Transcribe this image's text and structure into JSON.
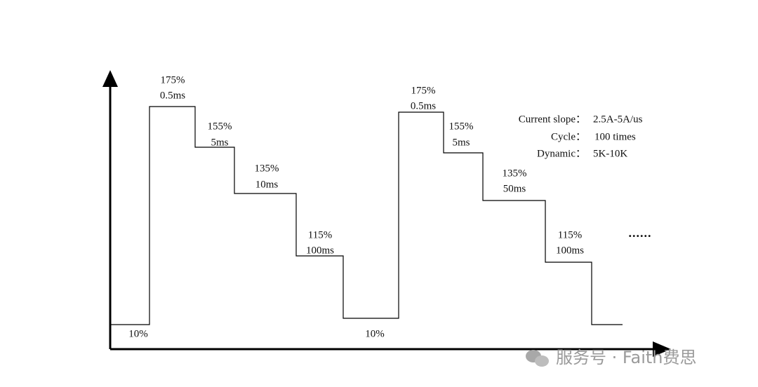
{
  "waveform": {
    "cycles": [
      {
        "steps": [
          {
            "level": "175%",
            "duration": "0.5ms"
          },
          {
            "level": "155%",
            "duration": "5ms"
          },
          {
            "level": "135%",
            "duration": "10ms"
          },
          {
            "level": "115%",
            "duration": "100ms"
          }
        ],
        "base": "10%"
      },
      {
        "steps": [
          {
            "level": "175%",
            "duration": "0.5ms"
          },
          {
            "level": "155%",
            "duration": "5ms"
          },
          {
            "level": "135%",
            "duration": "50ms"
          },
          {
            "level": "115%",
            "duration": "100ms"
          }
        ],
        "base": "10%"
      }
    ],
    "continuation": "......"
  },
  "parameters": [
    {
      "label": "Current slope：",
      "value": "2.5A-5A/us"
    },
    {
      "label": "Cycle：",
      "value": "100 times"
    },
    {
      "label": "Dynamic：",
      "value": "5K-10K"
    }
  ],
  "watermark": "服务号 · Faith费思"
}
